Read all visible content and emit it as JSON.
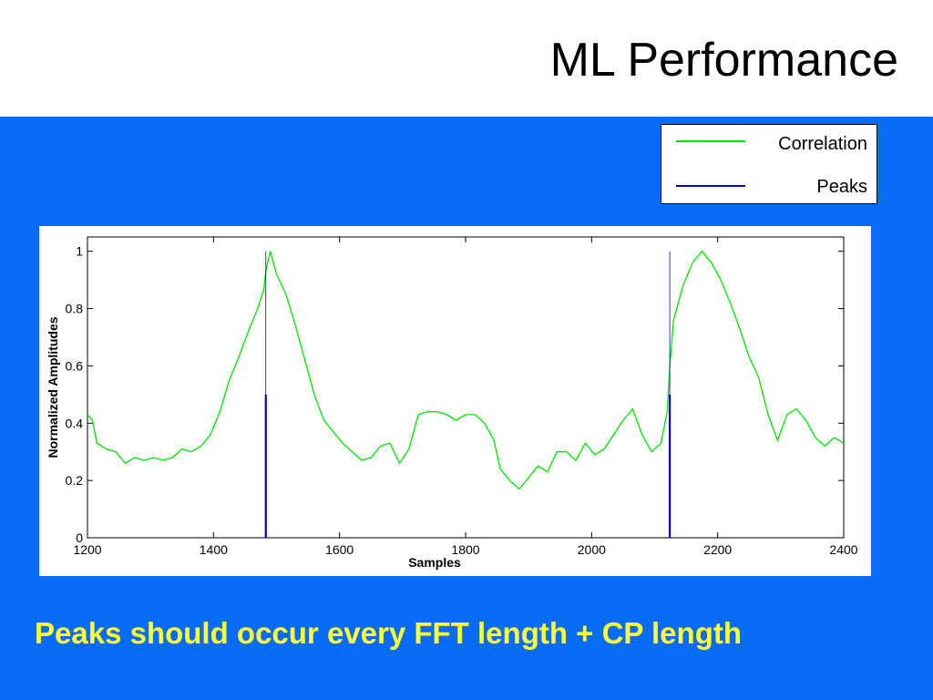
{
  "slide": {
    "title": "ML Performance",
    "footnote": "Peaks should occur every FFT length + CP length",
    "background_color": "#0a6cf5",
    "footnote_color": "#ffff33"
  },
  "legend": {
    "items": [
      {
        "label": "Correlation",
        "color": "#00e600"
      },
      {
        "label": "Peaks",
        "color": "#0000cc"
      }
    ]
  },
  "chart_data": {
    "type": "line",
    "xlabel": "Samples",
    "ylabel": "Normalized Amplitudes",
    "xlim": [
      1200,
      2400
    ],
    "ylim": [
      0,
      1.05
    ],
    "xticks": [
      "1200",
      "1400",
      "1600",
      "1800",
      "2000",
      "2200",
      "2400"
    ],
    "yticks": [
      "0",
      "0.2",
      "0.4",
      "0.6",
      "0.8",
      "1"
    ],
    "grid": false,
    "series": [
      {
        "name": "Correlation",
        "color": "#00e600",
        "x": [
          1200,
          1208,
          1215,
          1230,
          1245,
          1260,
          1275,
          1290,
          1305,
          1320,
          1335,
          1350,
          1365,
          1380,
          1395,
          1410,
          1425,
          1440,
          1455,
          1470,
          1480,
          1483,
          1490,
          1500,
          1515,
          1530,
          1545,
          1560,
          1575,
          1590,
          1605,
          1620,
          1635,
          1650,
          1665,
          1680,
          1695,
          1710,
          1725,
          1740,
          1755,
          1770,
          1785,
          1800,
          1815,
          1830,
          1845,
          1855,
          1870,
          1885,
          1900,
          1915,
          1930,
          1945,
          1960,
          1975,
          1990,
          2005,
          2020,
          2035,
          2050,
          2065,
          2080,
          2095,
          2110,
          2120,
          2124,
          2130,
          2145,
          2160,
          2175,
          2190,
          2205,
          2220,
          2235,
          2250,
          2265,
          2280,
          2295,
          2310,
          2325,
          2340,
          2355,
          2370,
          2385,
          2400
        ],
        "y": [
          0.43,
          0.41,
          0.33,
          0.31,
          0.3,
          0.26,
          0.28,
          0.27,
          0.28,
          0.27,
          0.28,
          0.31,
          0.3,
          0.32,
          0.36,
          0.44,
          0.55,
          0.63,
          0.72,
          0.8,
          0.87,
          0.93,
          1.0,
          0.92,
          0.85,
          0.74,
          0.62,
          0.5,
          0.41,
          0.37,
          0.33,
          0.3,
          0.27,
          0.28,
          0.32,
          0.33,
          0.26,
          0.31,
          0.43,
          0.44,
          0.44,
          0.43,
          0.41,
          0.43,
          0.43,
          0.4,
          0.34,
          0.24,
          0.2,
          0.17,
          0.21,
          0.25,
          0.23,
          0.3,
          0.3,
          0.27,
          0.33,
          0.29,
          0.31,
          0.36,
          0.41,
          0.45,
          0.36,
          0.3,
          0.33,
          0.44,
          0.6,
          0.76,
          0.88,
          0.96,
          1.0,
          0.96,
          0.9,
          0.82,
          0.73,
          0.63,
          0.56,
          0.43,
          0.34,
          0.43,
          0.45,
          0.41,
          0.35,
          0.32,
          0.35,
          0.33
        ]
      },
      {
        "name": "Peaks",
        "color": "#0000cc",
        "type": "stem",
        "x": [
          1483,
          2124
        ],
        "y": [
          0.5,
          0.5
        ]
      }
    ]
  }
}
